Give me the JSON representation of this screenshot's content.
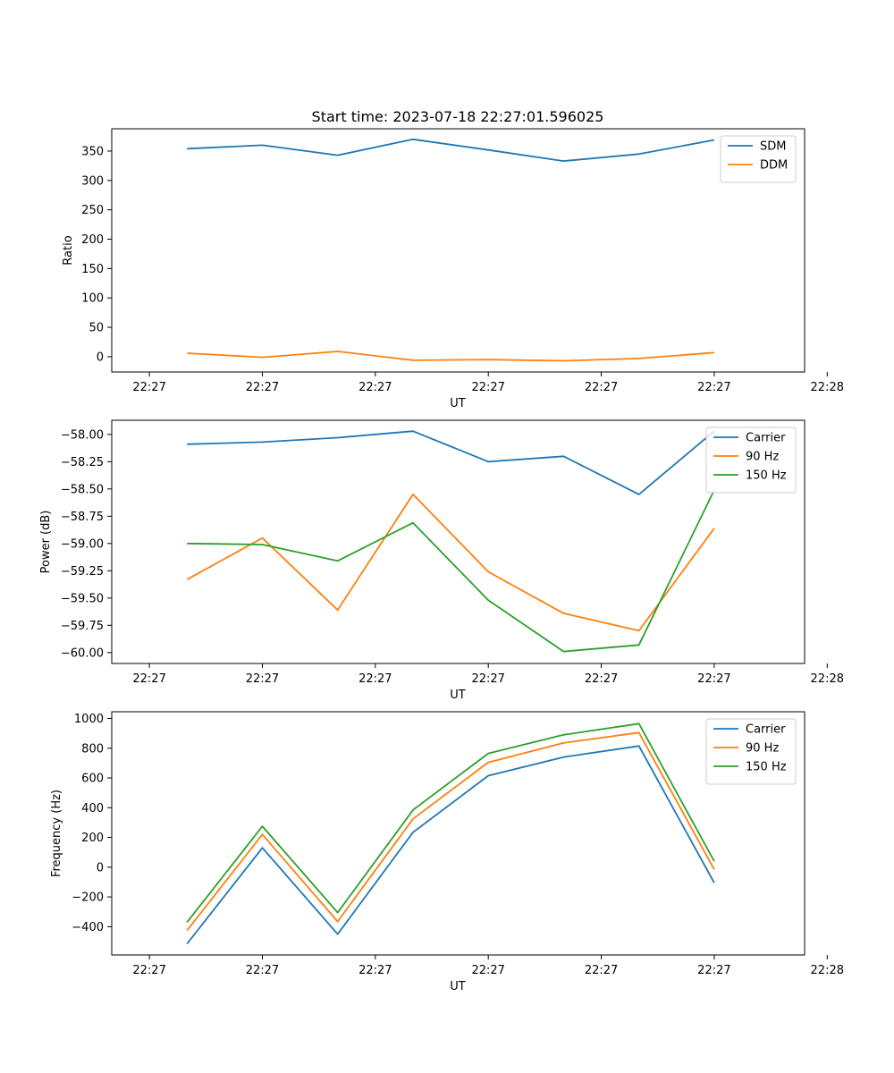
{
  "figure": {
    "title": "Start time: 2023-07-18 22:27:01.596025"
  },
  "chart_data": [
    {
      "type": "line",
      "title": "Start time: 2023-07-18 22:27:01.596025",
      "xlabel": "UT",
      "ylabel": "Ratio",
      "x": [
        1,
        2,
        3,
        4,
        5,
        6,
        7,
        8
      ],
      "xlim": [
        0,
        9.2
      ],
      "x_ticks": [
        0.5,
        2,
        3.5,
        5,
        6.5,
        8,
        9.5
      ],
      "x_tick_labels": [
        "22:27",
        "22:27",
        "22:27",
        "22:27",
        "22:27",
        "22:27",
        "22:28"
      ],
      "ylim": [
        -26,
        388
      ],
      "y_ticks": [
        0,
        50,
        100,
        150,
        200,
        250,
        300,
        350
      ],
      "y_tick_labels": [
        "0",
        "50",
        "100",
        "150",
        "200",
        "250",
        "300",
        "350"
      ],
      "legend": "top-right",
      "grid": false,
      "series": [
        {
          "name": "SDM",
          "color": "#1f77b4",
          "values": [
            354,
            360,
            343,
            370,
            352,
            333,
            345,
            369
          ]
        },
        {
          "name": "DDM",
          "color": "#ff7f0e",
          "values": [
            6,
            -1,
            9,
            -6,
            -5,
            -7,
            -3,
            7
          ]
        }
      ]
    },
    {
      "type": "line",
      "xlabel": "UT",
      "ylabel": "Power (dB)",
      "x": [
        1,
        2,
        3,
        4,
        5,
        6,
        7,
        8
      ],
      "xlim": [
        0,
        9.2
      ],
      "x_ticks": [
        0.5,
        2,
        3.5,
        5,
        6.5,
        8,
        9.5
      ],
      "x_tick_labels": [
        "22:27",
        "22:27",
        "22:27",
        "22:27",
        "22:27",
        "22:27",
        "22:28"
      ],
      "ylim": [
        -60.1,
        -57.87
      ],
      "y_ticks": [
        -60.0,
        -59.75,
        -59.5,
        -59.25,
        -59.0,
        -58.75,
        -58.5,
        -58.25,
        -58.0
      ],
      "y_tick_labels": [
        "−60.00",
        "−59.75",
        "−59.50",
        "−59.25",
        "−59.00",
        "−58.75",
        "−58.50",
        "−58.25",
        "−58.00"
      ],
      "legend": "top-right",
      "grid": false,
      "series": [
        {
          "name": "Carrier",
          "color": "#1f77b4",
          "values": [
            -58.09,
            -58.07,
            -58.03,
            -57.97,
            -58.25,
            -58.2,
            -58.55,
            -57.97
          ]
        },
        {
          "name": "90 Hz",
          "color": "#ff7f0e",
          "values": [
            -59.33,
            -58.95,
            -59.61,
            -58.55,
            -59.26,
            -59.64,
            -59.8,
            -58.86
          ]
        },
        {
          "name": "150 Hz",
          "color": "#2ca02c",
          "values": [
            -59.0,
            -59.01,
            -59.16,
            -58.81,
            -59.52,
            -59.99,
            -59.93,
            -58.51
          ]
        }
      ]
    },
    {
      "type": "line",
      "xlabel": "UT",
      "ylabel": "Frequency (Hz)",
      "x": [
        1,
        2,
        3,
        4,
        5,
        6,
        7,
        8
      ],
      "xlim": [
        0,
        9.2
      ],
      "x_ticks": [
        0.5,
        2,
        3.5,
        5,
        6.5,
        8,
        9.5
      ],
      "x_tick_labels": [
        "22:27",
        "22:27",
        "22:27",
        "22:27",
        "22:27",
        "22:27",
        "22:28"
      ],
      "ylim": [
        -590,
        1045
      ],
      "y_ticks": [
        -400,
        -200,
        0,
        200,
        400,
        600,
        800,
        1000
      ],
      "y_tick_labels": [
        "−400",
        "−200",
        "0",
        "200",
        "400",
        "600",
        "800",
        "1000"
      ],
      "legend": "top-right",
      "grid": false,
      "series": [
        {
          "name": "Carrier",
          "color": "#1f77b4",
          "values": [
            -515,
            130,
            -450,
            235,
            615,
            740,
            815,
            -105
          ]
        },
        {
          "name": "90 Hz",
          "color": "#ff7f0e",
          "values": [
            -425,
            220,
            -365,
            325,
            705,
            835,
            905,
            -15
          ]
        },
        {
          "name": "150 Hz",
          "color": "#2ca02c",
          "values": [
            -370,
            275,
            -305,
            385,
            765,
            890,
            965,
            40
          ]
        }
      ]
    }
  ]
}
